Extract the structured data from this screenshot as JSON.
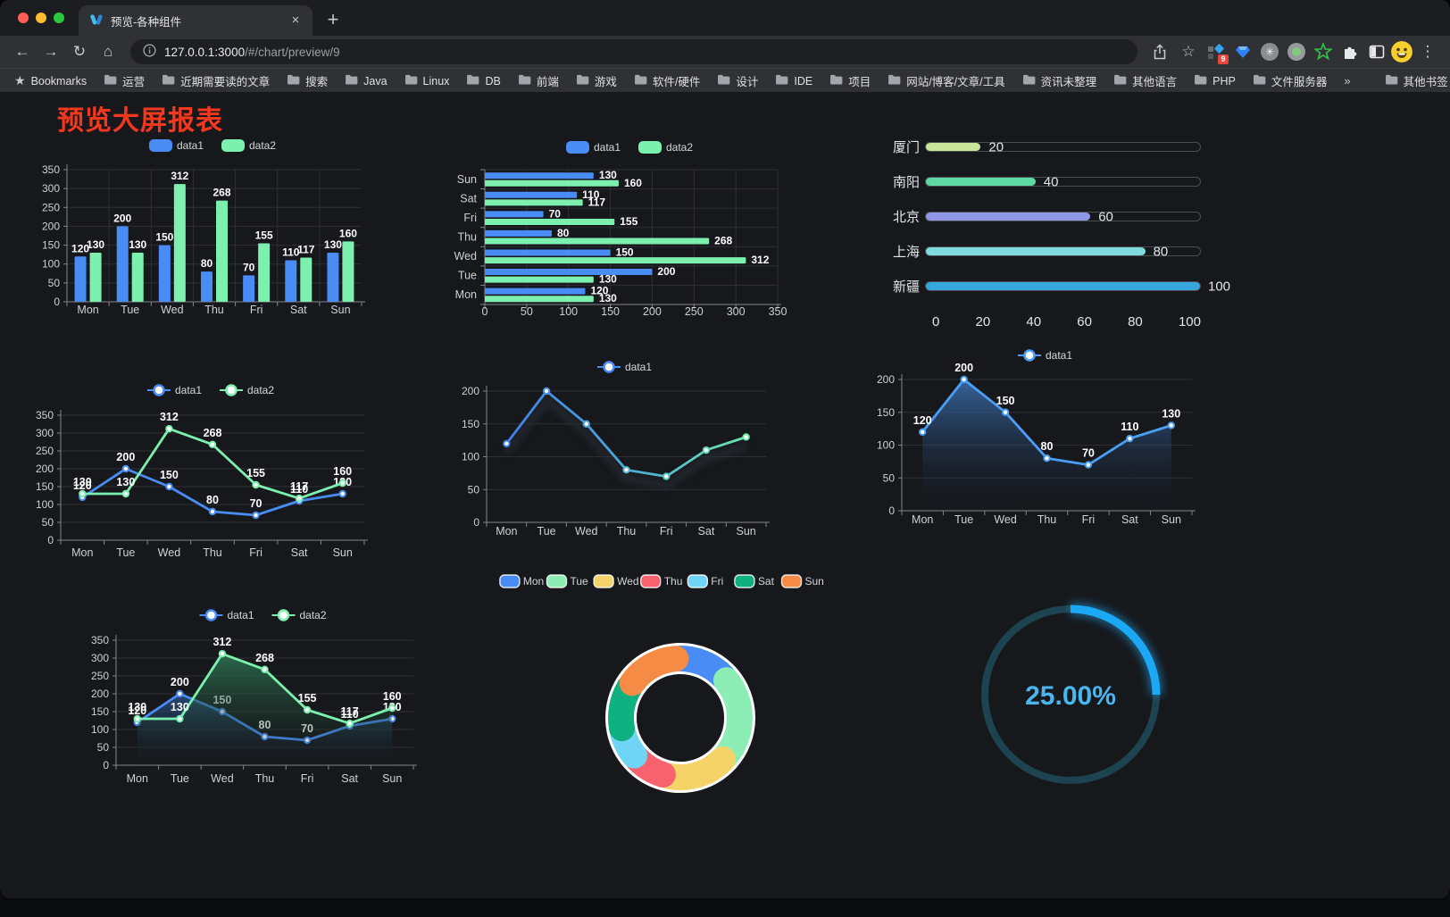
{
  "browser": {
    "tab": {
      "title": "预览-各种组件",
      "close": "×",
      "new_tab": "+"
    },
    "address": {
      "host": "127.0.0.1:3000",
      "path": "/#/chart/preview/9"
    },
    "extensions_badge": "9",
    "bookmarks": {
      "root_label": "Bookmarks",
      "folders": [
        "运营",
        "近期需要读的文章",
        "搜索",
        "Java",
        "Linux",
        "DB",
        "前端",
        "游戏",
        "软件/硬件",
        "设计",
        "IDE",
        "项目",
        "网站/博客/文章/工具",
        "资讯未整理",
        "其他语言",
        "PHP",
        "文件服务器"
      ],
      "overflow_chevron": "»",
      "other_label": "其他书签"
    }
  },
  "page": {
    "title": "预览大屏报表"
  },
  "chart_data": [
    {
      "type": "bar",
      "orientation": "vertical",
      "categories": [
        "Mon",
        "Tue",
        "Wed",
        "Thu",
        "Fri",
        "Sat",
        "Sun"
      ],
      "series": [
        {
          "name": "data1",
          "color": "#4a8cf5",
          "values": [
            120,
            200,
            150,
            80,
            70,
            110,
            130
          ]
        },
        {
          "name": "data2",
          "color": "#7bf0af",
          "values": [
            130,
            130,
            312,
            268,
            155,
            117,
            160
          ]
        }
      ],
      "ylim": [
        0,
        350
      ],
      "ystep": 50,
      "grid": true,
      "legend_position": "top",
      "value_labels": true
    },
    {
      "type": "bar",
      "orientation": "horizontal",
      "categories": [
        "Mon",
        "Tue",
        "Wed",
        "Thu",
        "Fri",
        "Sat",
        "Sun"
      ],
      "series": [
        {
          "name": "data1",
          "color": "#4a8cf5",
          "values": [
            120,
            200,
            150,
            80,
            70,
            110,
            130
          ]
        },
        {
          "name": "data2",
          "color": "#7bf0af",
          "values": [
            130,
            130,
            312,
            268,
            155,
            117,
            160
          ]
        }
      ],
      "xlim": [
        0,
        350
      ],
      "xstep": 50,
      "grid": true,
      "legend_position": "top",
      "value_labels": true
    },
    {
      "type": "progress",
      "items": [
        {
          "label": "厦门",
          "value": 20,
          "color": "#c9e59a"
        },
        {
          "label": "南阳",
          "value": 40,
          "color": "#5fd9a4"
        },
        {
          "label": "北京",
          "value": 60,
          "color": "#8f96e3"
        },
        {
          "label": "上海",
          "value": 80,
          "color": "#7fdbe0"
        },
        {
          "label": "新疆",
          "value": 100,
          "color": "#36a6dd"
        }
      ],
      "max": 100,
      "axis_ticks": [
        0,
        20,
        40,
        60,
        80,
        100
      ]
    },
    {
      "type": "line",
      "categories": [
        "Mon",
        "Tue",
        "Wed",
        "Thu",
        "Fri",
        "Sat",
        "Sun"
      ],
      "series": [
        {
          "name": "data1",
          "color": "#4a8cf5",
          "values": [
            120,
            200,
            150,
            80,
            70,
            110,
            130
          ],
          "labels": true
        },
        {
          "name": "data2",
          "color": "#7bf0af",
          "values": [
            130,
            130,
            312,
            268,
            155,
            117,
            160
          ],
          "labels": true
        }
      ],
      "ylim": [
        0,
        350
      ],
      "ystep": 50,
      "legend_position": "top"
    },
    {
      "type": "line",
      "categories": [
        "Mon",
        "Tue",
        "Wed",
        "Thu",
        "Fri",
        "Sat",
        "Sun"
      ],
      "series": [
        {
          "name": "data1",
          "color": "#4a8cf5",
          "color_gradient": [
            "#3f82ea",
            "#6ce7a9"
          ],
          "values": [
            120,
            200,
            150,
            80,
            70,
            110,
            130
          ],
          "labels": false,
          "shadow": true
        }
      ],
      "ylim": [
        0,
        200
      ],
      "ystep": 50,
      "legend_position": "top"
    },
    {
      "type": "area",
      "categories": [
        "Mon",
        "Tue",
        "Wed",
        "Thu",
        "Fri",
        "Sat",
        "Sun"
      ],
      "series": [
        {
          "name": "data1",
          "color": "#4a9ff5",
          "values": [
            120,
            200,
            150,
            80,
            70,
            110,
            130
          ],
          "labels": true,
          "area_gradient": [
            "rgba(58,108,170,0.90)",
            "rgba(20,30,48,0)"
          ]
        }
      ],
      "ylim": [
        0,
        200
      ],
      "ystep": 50,
      "legend_position": "top"
    },
    {
      "type": "area",
      "categories": [
        "Mon",
        "Tue",
        "Wed",
        "Thu",
        "Fri",
        "Sat",
        "Sun"
      ],
      "series": [
        {
          "name": "data1",
          "color": "#4a8cf5",
          "values": [
            120,
            200,
            150,
            80,
            70,
            110,
            130
          ],
          "labels": true,
          "area_gradient": [
            "rgba(42,82,136,0.85)",
            "rgba(20,28,40,0.02)"
          ]
        },
        {
          "name": "data2",
          "color": "#7bf0af",
          "values": [
            130,
            130,
            312,
            268,
            155,
            117,
            160
          ],
          "labels": true,
          "area_gradient": [
            "rgba(47,120,86,0.85)",
            "rgba(20,32,26,0.02)"
          ]
        }
      ],
      "ylim": [
        0,
        350
      ],
      "ystep": 50,
      "legend_position": "top"
    },
    {
      "type": "pie",
      "subtype": "donut",
      "categories": [
        "Mon",
        "Tue",
        "Wed",
        "Thu",
        "Fri",
        "Sat",
        "Sun"
      ],
      "values": [
        120,
        200,
        150,
        80,
        70,
        110,
        130
      ],
      "colors": [
        "#4a8cf5",
        "#8ceeb5",
        "#f5d368",
        "#f8626f",
        "#6fd4f5",
        "#10b181",
        "#f58b44"
      ],
      "legend_position": "top"
    },
    {
      "type": "gauge",
      "value": 25,
      "label": "25.00%",
      "color": "#1ba9f5",
      "track_color": "#1d4350",
      "text_color": "#49b6ee"
    }
  ]
}
